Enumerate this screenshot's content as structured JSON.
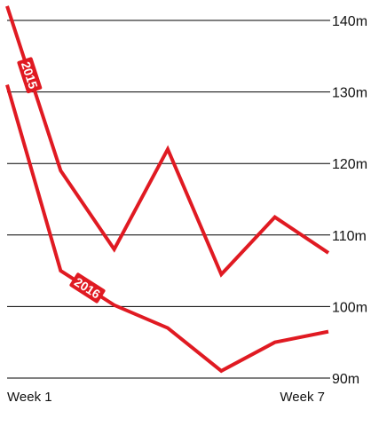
{
  "chart_data": {
    "type": "line",
    "title": "",
    "xlabel": "",
    "ylabel": "",
    "unit": "m",
    "x": [
      1,
      2,
      3,
      4,
      5,
      6,
      7
    ],
    "x_tick_labels": [
      {
        "x": 1,
        "label": "Week 1"
      },
      {
        "x": 7,
        "label": "Week 7"
      }
    ],
    "ylim": [
      90,
      140
    ],
    "y_ticks": [
      90,
      100,
      110,
      120,
      130,
      140
    ],
    "y_tick_labels": [
      "90m",
      "100m",
      "110m",
      "120m",
      "130m",
      "140m"
    ],
    "grid": true,
    "series": [
      {
        "name": "2015",
        "color": "#e01a22",
        "values": [
          142,
          119,
          108,
          122,
          104.5,
          112.5,
          107.5
        ]
      },
      {
        "name": "2016",
        "color": "#e01a22",
        "values": [
          131,
          105,
          100.2,
          97,
          91,
          95,
          96.5
        ]
      }
    ]
  }
}
